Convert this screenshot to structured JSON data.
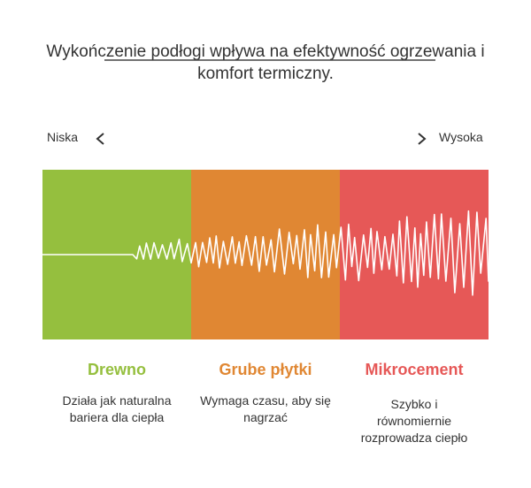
{
  "header": {
    "title": "Wykończenie podłogi wpływa na efektywność ogrzewania i komfort termiczny."
  },
  "scale": {
    "low": "Niska",
    "high": "Wysoka"
  },
  "panels": [
    {
      "title": "Drewno",
      "description": "Działa jak naturalna bariera dla ciepła"
    },
    {
      "title": "Grube płytki",
      "description": "Wymaga czasu, aby się nagrzać"
    },
    {
      "title": "Mikrocement",
      "description": "Szybko i równomiernie rozprowadza ciepło"
    }
  ]
}
